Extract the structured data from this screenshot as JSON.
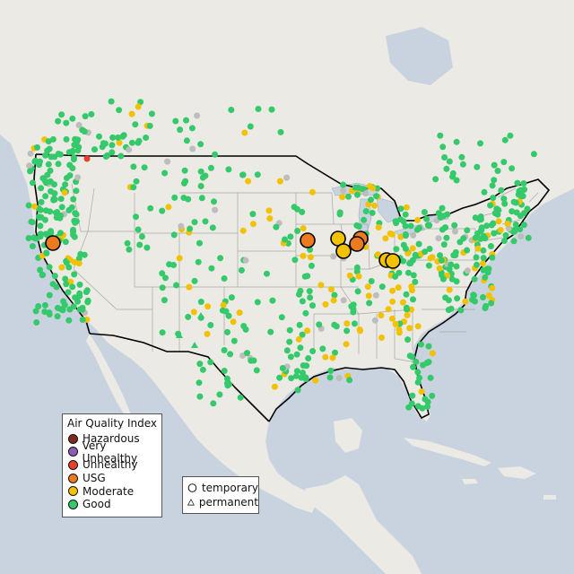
{
  "legend": {
    "title": "Air Quality Index",
    "categories": [
      {
        "label": "Hazardous",
        "color": "#7e2a1f"
      },
      {
        "label": "Very Unhealthy",
        "color": "#8f5cb3"
      },
      {
        "label": "Unhealthy",
        "color": "#e8402c"
      },
      {
        "label": "USG",
        "color": "#ec7b1f"
      },
      {
        "label": "Moderate",
        "color": "#f2c100"
      },
      {
        "label": "Good",
        "color": "#34c96b"
      }
    ]
  },
  "type_legend": {
    "items": [
      {
        "label": "temporary",
        "icon": "circle-icon"
      },
      {
        "label": "permanent",
        "icon": "triangle-icon"
      }
    ]
  },
  "colors": {
    "water": "#c9d3df",
    "land": "#ecebe6",
    "good": "#34c96b",
    "moderate": "#f2c100",
    "usg": "#ec7b1f",
    "unhealthy": "#e8402c",
    "unmonitored": "#bdbdbd"
  }
}
